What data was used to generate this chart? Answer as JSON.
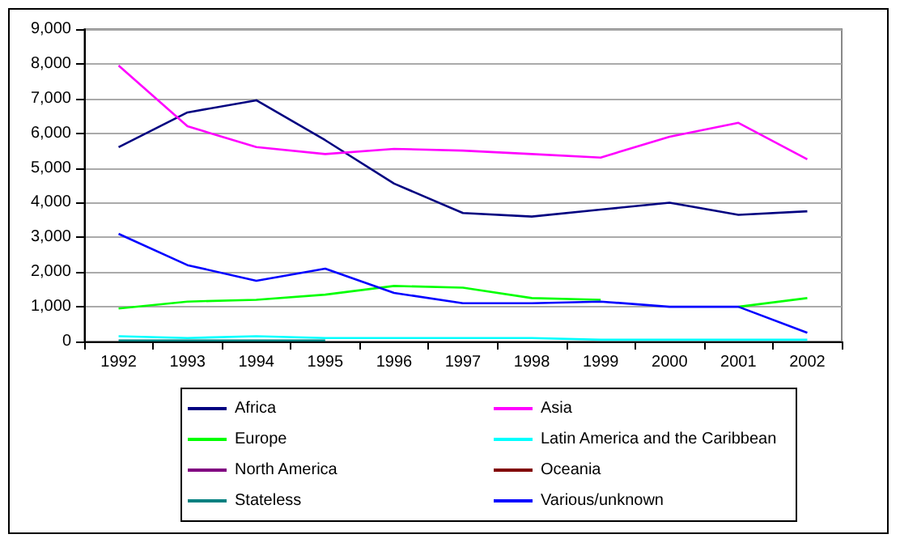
{
  "chart_data": {
    "type": "line",
    "categories": [
      "1992",
      "1993",
      "1994",
      "1995",
      "1996",
      "1997",
      "1998",
      "1999",
      "2000",
      "2001",
      "2002"
    ],
    "ylim": [
      0,
      9000
    ],
    "yticks": [
      {
        "value": 0,
        "label": "0"
      },
      {
        "value": 1000,
        "label": "1,000"
      },
      {
        "value": 2000,
        "label": "2,000"
      },
      {
        "value": 3000,
        "label": "3,000"
      },
      {
        "value": 4000,
        "label": "4,000"
      },
      {
        "value": 5000,
        "label": "5,000"
      },
      {
        "value": 6000,
        "label": "6,000"
      },
      {
        "value": 7000,
        "label": "7,000"
      },
      {
        "value": 8000,
        "label": "8,000"
      },
      {
        "value": 9000,
        "label": "9,000"
      }
    ],
    "grid": "y",
    "legend": "bottom",
    "marker": "none",
    "series": [
      {
        "name": "Africa",
        "color": "#000080",
        "values": [
          5600,
          6600,
          6950,
          5800,
          4550,
          3700,
          3600,
          3800,
          4000,
          3650,
          3750
        ]
      },
      {
        "name": "Asia",
        "color": "#ff00ff",
        "values": [
          7950,
          6200,
          5600,
          5400,
          5550,
          5500,
          5400,
          5300,
          5900,
          6300,
          5250
        ]
      },
      {
        "name": "Europe",
        "color": "#00ff00",
        "values": [
          950,
          1150,
          1200,
          1350,
          1600,
          1550,
          1250,
          1200,
          null,
          1000,
          1250
        ]
      },
      {
        "name": "Latin America and the Caribbean",
        "color": "#00ffff",
        "values": [
          150,
          100,
          150,
          100,
          100,
          100,
          100,
          50,
          50,
          50,
          50
        ]
      },
      {
        "name": "North America",
        "color": "#800080",
        "values": [
          null,
          null,
          null,
          null,
          null,
          null,
          null,
          null,
          null,
          null,
          null
        ]
      },
      {
        "name": "Oceania",
        "color": "#800000",
        "values": [
          null,
          null,
          null,
          null,
          null,
          null,
          null,
          null,
          null,
          null,
          null
        ]
      },
      {
        "name": "Stateless",
        "color": "#008080",
        "values": [
          30,
          30,
          30,
          30,
          null,
          null,
          null,
          null,
          null,
          null,
          null
        ]
      },
      {
        "name": "Various/unknown",
        "color": "#0000ff",
        "values": [
          3100,
          2200,
          1750,
          2100,
          1400,
          1100,
          1100,
          1150,
          1000,
          1000,
          250
        ]
      }
    ]
  }
}
